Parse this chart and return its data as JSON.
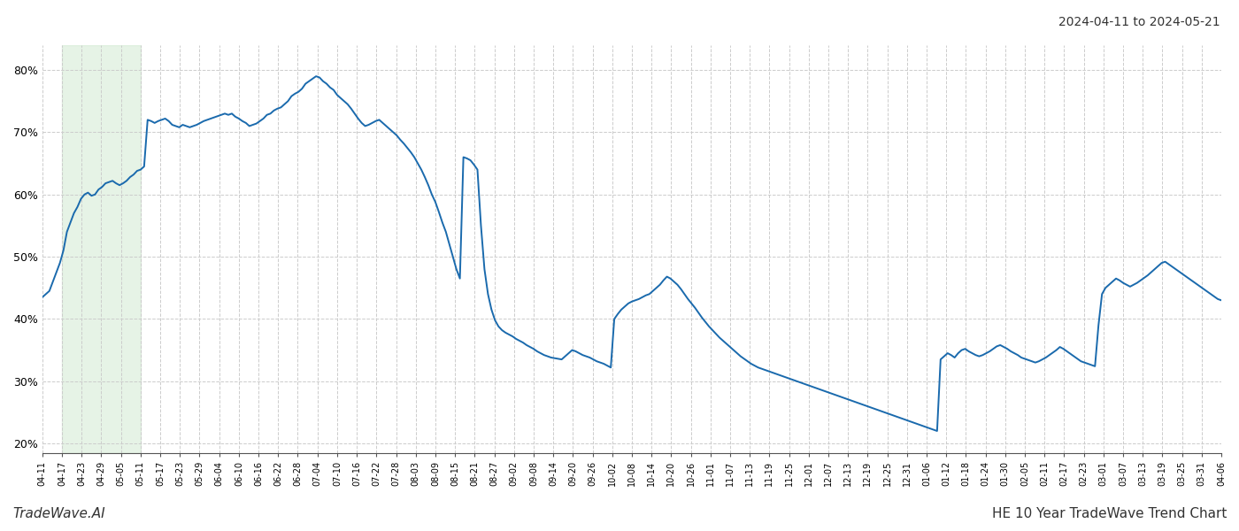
{
  "title_top_right": "2024-04-11 to 2024-05-21",
  "title_bottom_left": "TradeWave.AI",
  "title_bottom_right": "HE 10 Year TradeWave Trend Chart",
  "line_color": "#1a6aad",
  "line_width": 1.4,
  "background_color": "#ffffff",
  "grid_color": "#cccccc",
  "grid_style": "--",
  "shade_color": "#c8e6c9",
  "shade_alpha": 0.45,
  "ylim": [
    0.185,
    0.84
  ],
  "yticks": [
    0.2,
    0.3,
    0.4,
    0.5,
    0.6,
    0.7,
    0.8
  ],
  "x_labels": [
    "04-11",
    "04-17",
    "04-23",
    "04-29",
    "05-05",
    "05-11",
    "05-17",
    "05-23",
    "05-29",
    "06-04",
    "06-10",
    "06-16",
    "06-22",
    "06-28",
    "07-04",
    "07-10",
    "07-16",
    "07-22",
    "07-28",
    "08-03",
    "08-09",
    "08-15",
    "08-21",
    "08-27",
    "09-02",
    "09-08",
    "09-14",
    "09-20",
    "09-26",
    "10-02",
    "10-08",
    "10-14",
    "10-20",
    "10-26",
    "11-01",
    "11-07",
    "11-13",
    "11-19",
    "11-25",
    "12-01",
    "12-07",
    "12-13",
    "12-19",
    "12-25",
    "12-31",
    "01-06",
    "01-12",
    "01-18",
    "01-24",
    "01-30",
    "02-05",
    "02-11",
    "02-17",
    "02-23",
    "03-01",
    "03-07",
    "03-13",
    "03-19",
    "03-25",
    "03-31",
    "04-06"
  ],
  "shade_label_start": "04-17",
  "shade_label_end": "05-11",
  "y_values": [
    0.435,
    0.44,
    0.445,
    0.46,
    0.475,
    0.49,
    0.51,
    0.54,
    0.555,
    0.57,
    0.58,
    0.593,
    0.6,
    0.603,
    0.598,
    0.6,
    0.608,
    0.612,
    0.618,
    0.62,
    0.622,
    0.618,
    0.615,
    0.618,
    0.622,
    0.628,
    0.632,
    0.638,
    0.64,
    0.645,
    0.72,
    0.718,
    0.715,
    0.718,
    0.72,
    0.722,
    0.718,
    0.712,
    0.71,
    0.708,
    0.712,
    0.71,
    0.708,
    0.71,
    0.712,
    0.715,
    0.718,
    0.72,
    0.722,
    0.724,
    0.726,
    0.728,
    0.73,
    0.728,
    0.73,
    0.725,
    0.722,
    0.718,
    0.715,
    0.71,
    0.712,
    0.714,
    0.718,
    0.722,
    0.728,
    0.73,
    0.735,
    0.738,
    0.74,
    0.745,
    0.75,
    0.758,
    0.762,
    0.765,
    0.77,
    0.778,
    0.782,
    0.786,
    0.79,
    0.788,
    0.782,
    0.778,
    0.772,
    0.768,
    0.76,
    0.755,
    0.75,
    0.745,
    0.738,
    0.73,
    0.722,
    0.715,
    0.71,
    0.712,
    0.715,
    0.718,
    0.72,
    0.715,
    0.71,
    0.705,
    0.7,
    0.695,
    0.688,
    0.682,
    0.675,
    0.668,
    0.66,
    0.65,
    0.64,
    0.628,
    0.615,
    0.6,
    0.588,
    0.572,
    0.555,
    0.54,
    0.52,
    0.5,
    0.48,
    0.465,
    0.66,
    0.658,
    0.655,
    0.648,
    0.64,
    0.55,
    0.48,
    0.44,
    0.415,
    0.398,
    0.388,
    0.382,
    0.378,
    0.375,
    0.372,
    0.368,
    0.365,
    0.362,
    0.358,
    0.355,
    0.352,
    0.348,
    0.345,
    0.342,
    0.34,
    0.338,
    0.337,
    0.336,
    0.335,
    0.34,
    0.345,
    0.35,
    0.348,
    0.345,
    0.342,
    0.34,
    0.338,
    0.335,
    0.332,
    0.33,
    0.328,
    0.325,
    0.322,
    0.4,
    0.408,
    0.415,
    0.42,
    0.425,
    0.428,
    0.43,
    0.432,
    0.435,
    0.438,
    0.44,
    0.445,
    0.45,
    0.455,
    0.462,
    0.468,
    0.465,
    0.46,
    0.455,
    0.448,
    0.44,
    0.432,
    0.425,
    0.418,
    0.41,
    0.402,
    0.395,
    0.388,
    0.382,
    0.376,
    0.37,
    0.365,
    0.36,
    0.355,
    0.35,
    0.345,
    0.34,
    0.336,
    0.332,
    0.328,
    0.325,
    0.322,
    0.32,
    0.318,
    0.316,
    0.314,
    0.312,
    0.31,
    0.308,
    0.306,
    0.304,
    0.302,
    0.3,
    0.298,
    0.296,
    0.294,
    0.292,
    0.29,
    0.288,
    0.286,
    0.284,
    0.282,
    0.28,
    0.278,
    0.276,
    0.274,
    0.272,
    0.27,
    0.268,
    0.266,
    0.264,
    0.262,
    0.26,
    0.258,
    0.256,
    0.254,
    0.252,
    0.25,
    0.248,
    0.246,
    0.244,
    0.242,
    0.24,
    0.238,
    0.236,
    0.234,
    0.232,
    0.23,
    0.228,
    0.226,
    0.224,
    0.222,
    0.22,
    0.335,
    0.34,
    0.345,
    0.342,
    0.338,
    0.345,
    0.35,
    0.352,
    0.348,
    0.345,
    0.342,
    0.34,
    0.342,
    0.345,
    0.348,
    0.352,
    0.356,
    0.358,
    0.355,
    0.352,
    0.348,
    0.345,
    0.342,
    0.338,
    0.336,
    0.334,
    0.332,
    0.33,
    0.332,
    0.335,
    0.338,
    0.342,
    0.346,
    0.35,
    0.355,
    0.352,
    0.348,
    0.344,
    0.34,
    0.336,
    0.332,
    0.33,
    0.328,
    0.326,
    0.324,
    0.39,
    0.44,
    0.45,
    0.455,
    0.46,
    0.465,
    0.462,
    0.458,
    0.455,
    0.452,
    0.455,
    0.458,
    0.462,
    0.466,
    0.47,
    0.475,
    0.48,
    0.485,
    0.49,
    0.492,
    0.488,
    0.484,
    0.48,
    0.476,
    0.472,
    0.468,
    0.464,
    0.46,
    0.456,
    0.452,
    0.448,
    0.444,
    0.44,
    0.436,
    0.432,
    0.43
  ]
}
